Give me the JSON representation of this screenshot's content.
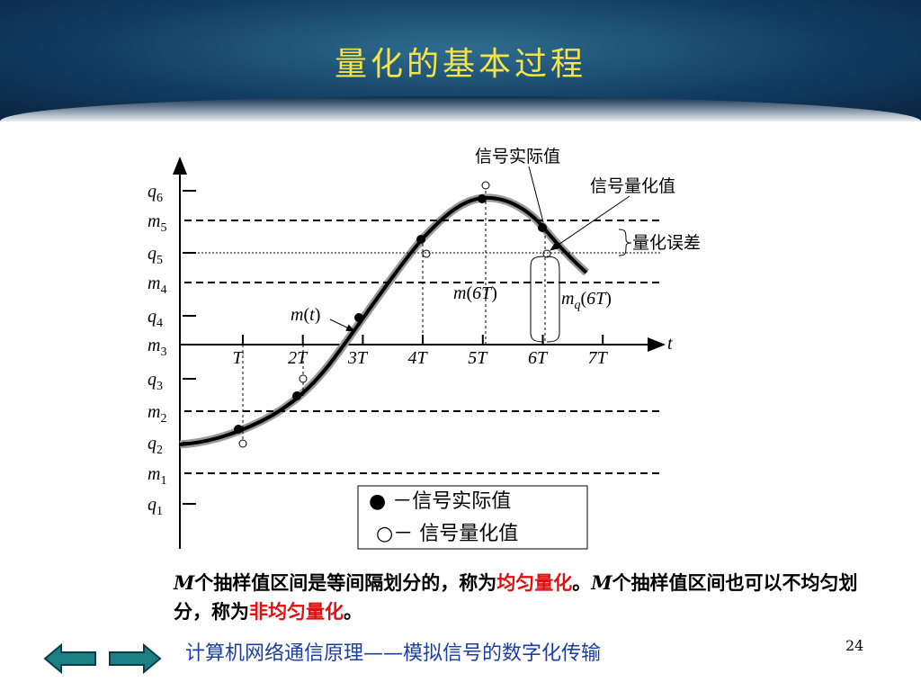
{
  "header": {
    "title": "量化的基本过程"
  },
  "levels": [
    {
      "base": "q",
      "sub": "6"
    },
    {
      "base": "m",
      "sub": "5"
    },
    {
      "base": "q",
      "sub": "5"
    },
    {
      "base": "m",
      "sub": "4"
    },
    {
      "base": "q",
      "sub": "4"
    },
    {
      "base": "m",
      "sub": "3"
    },
    {
      "base": "q",
      "sub": "3"
    },
    {
      "base": "m",
      "sub": "2"
    },
    {
      "base": "q",
      "sub": "2"
    },
    {
      "base": "m",
      "sub": "1"
    },
    {
      "base": "q",
      "sub": "1"
    }
  ],
  "x_labels": [
    "T",
    "2T",
    "3T",
    "4T",
    "5T",
    "6T",
    "7T"
  ],
  "x_axis_label": "t",
  "annotations": {
    "actual": "信号实际值",
    "quantized": "信号量化值",
    "error": "量化误差",
    "signal": {
      "base": "m",
      "arg": "t"
    },
    "sample": {
      "base": "m",
      "arg": "6T"
    },
    "quant": {
      "base": "m",
      "sub": "q",
      "arg": "6T"
    }
  },
  "legend": [
    "● －信号实际值",
    "○－ 信号量化值"
  ],
  "body": [
    {
      "text": "M",
      "style": "em"
    },
    {
      "text": "个抽样值区间是等间隔划分的，称为",
      "style": "plain"
    },
    {
      "text": "均匀量化",
      "style": "red"
    },
    {
      "text": "。",
      "style": "plain"
    },
    {
      "text": "M",
      "style": "em"
    },
    {
      "text": "个抽样值区间也可以不均匀划分，称为",
      "style": "plain"
    },
    {
      "text": "非均匀量化",
      "style": "red"
    },
    {
      "text": "。",
      "style": "plain"
    }
  ],
  "footer": {
    "text": "计算机网络通信原理——模拟信号的数字化传输",
    "page": "24"
  }
}
